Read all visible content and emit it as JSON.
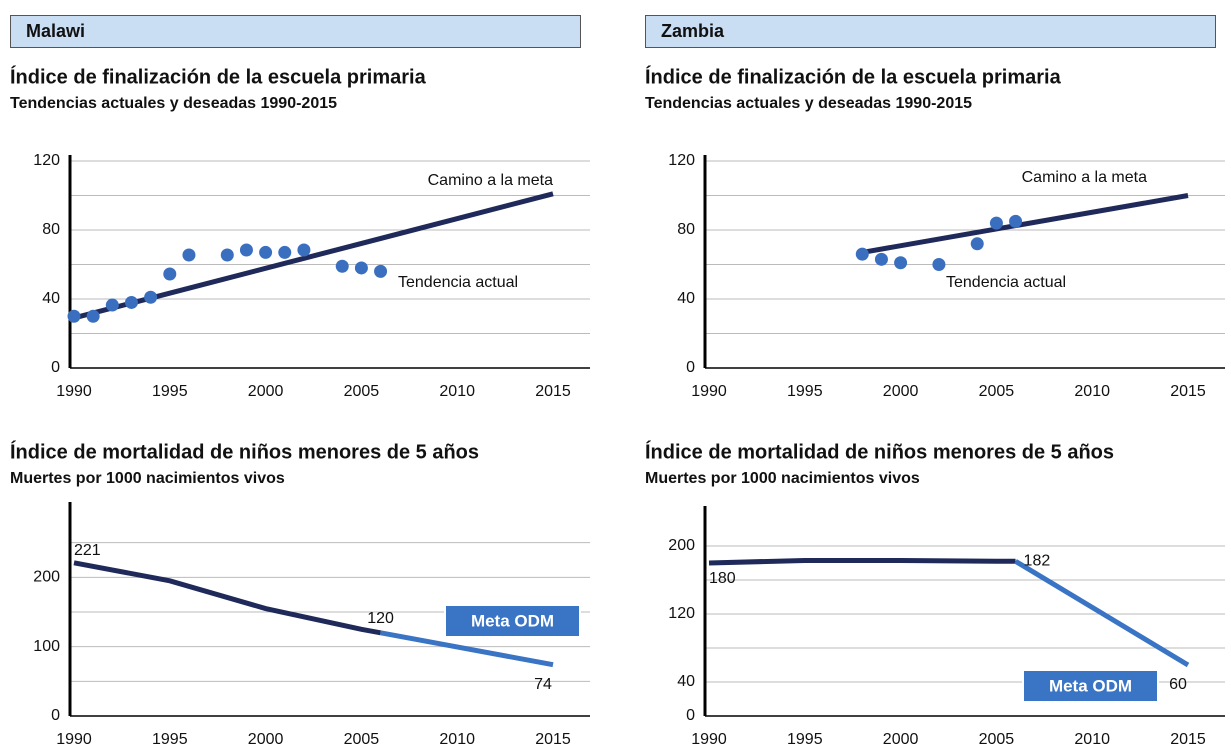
{
  "panels": [
    {
      "title": "Malawi"
    },
    {
      "title": "Zambia"
    }
  ],
  "chart_data": [
    {
      "type": "scatter",
      "title": "Índice de finalización  de la escuela primaria",
      "subtitle": "Tendencias actuales y deseadas 1990-2015",
      "x": [
        1990,
        1991,
        1992,
        1993,
        1994,
        1995,
        1996,
        1998,
        1999,
        2000,
        2001,
        2002,
        2004,
        2005,
        2006
      ],
      "values": [
        30,
        30,
        36.5,
        38,
        41,
        54.5,
        65.5,
        65.5,
        68.4,
        67,
        67,
        68.4,
        59,
        58,
        56
      ],
      "color": "#3a6fbf",
      "goal_line": {
        "x": [
          1990,
          2015
        ],
        "values": [
          29,
          101
        ],
        "color": "#1f2a5a"
      },
      "annotations": [
        {
          "text": "Camino a la meta"
        },
        {
          "text": "Tendencia actual"
        }
      ],
      "xlim": [
        1990,
        2015
      ],
      "xticks": [
        1990,
        1995,
        2000,
        2005,
        2010,
        2015
      ],
      "ylim": [
        0,
        120
      ],
      "yticks": [
        0,
        40,
        80,
        120
      ],
      "minor_yticks": [
        20,
        60,
        100
      ],
      "grid": true
    },
    {
      "type": "scatter",
      "title": "Índice de finalización  de la escuela primaria",
      "subtitle": "Tendencias actuales y deseadas 1990-2015",
      "x": [
        1998,
        1999,
        2000,
        2002,
        2004,
        2005,
        2006
      ],
      "values": [
        66,
        63,
        61,
        60,
        72,
        84,
        85
      ],
      "color": "#3a6fbf",
      "goal_line": {
        "x": [
          1998,
          2015
        ],
        "values": [
          67,
          100
        ],
        "color": "#1f2a5a"
      },
      "annotations": [
        {
          "text": "Camino a la meta"
        },
        {
          "text": "Tendencia actual"
        }
      ],
      "xlim": [
        1990,
        2015
      ],
      "xticks": [
        1990,
        1995,
        2000,
        2005,
        2010,
        2015
      ],
      "ylim": [
        0,
        120
      ],
      "yticks": [
        0,
        40,
        80,
        120
      ],
      "minor_yticks": [
        20,
        60,
        100
      ],
      "grid": true
    },
    {
      "type": "line",
      "title": "Índice de mortalidad de niños menores de 5 años",
      "subtitle": "Muertes por 1000 nacimientos vivos",
      "x": [
        1990,
        1995,
        2000,
        2005,
        2006,
        2015
      ],
      "series": [
        {
          "color": "#1f2a5a",
          "values": [
            221,
            195,
            155,
            125,
            120,
            null
          ]
        },
        {
          "color": "#3a74c4",
          "values": [
            null,
            null,
            null,
            null,
            120,
            74
          ]
        }
      ],
      "annotations": [
        {
          "text": "Meta ODM"
        }
      ],
      "xlim": [
        1990,
        2015
      ],
      "xticks": [
        1990,
        1995,
        2000,
        2005,
        2010,
        2015
      ],
      "ylim": [
        0,
        300
      ],
      "yticks": [
        0,
        100,
        200
      ],
      "minor_yticks": [
        50,
        150,
        250
      ],
      "grid": true
    },
    {
      "type": "line",
      "title": "Índice de mortalidad de niños menores de 5 años",
      "subtitle": "Muertes por 1000 nacimientos vivos",
      "x": [
        1990,
        1995,
        2000,
        2005,
        2006,
        2015
      ],
      "series": [
        {
          "color": "#1f2a5a",
          "values": [
            180,
            183,
            183,
            182,
            182,
            null
          ]
        },
        {
          "color": "#3a74c4",
          "values": [
            null,
            null,
            null,
            null,
            182,
            60
          ]
        }
      ],
      "annotations": [
        {
          "text": "Meta ODM"
        }
      ],
      "xlim": [
        1990,
        2015
      ],
      "xticks": [
        1990,
        1995,
        2000,
        2005,
        2010,
        2015
      ],
      "ylim": [
        0,
        240
      ],
      "yticks": [
        0,
        40,
        120,
        200
      ],
      "minor_yticks": [
        80,
        160
      ],
      "grid": true
    }
  ]
}
